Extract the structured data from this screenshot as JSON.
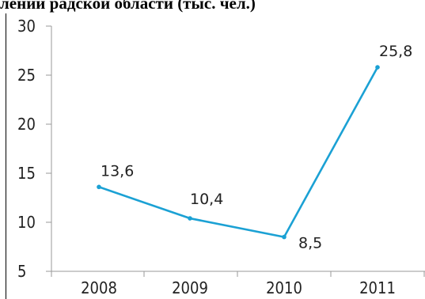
{
  "chart_data": {
    "type": "line",
    "title": "лении радской области (тыс. чел.)",
    "x": [
      "2008",
      "2009",
      "2010",
      "2011"
    ],
    "series": [
      {
        "values": [
          13.6,
          10.4,
          8.5,
          25.8
        ],
        "labels": [
          "13,6",
          "10,4",
          "8,5",
          "25,8"
        ]
      }
    ],
    "yticks": [
      "5",
      "10",
      "15",
      "20",
      "25",
      "30"
    ],
    "ylim": [
      5,
      30
    ],
    "xlabel": "",
    "ylabel": "",
    "grid": false,
    "line_color": "#1ba1d4",
    "axis_color": "#9a9a9a"
  }
}
